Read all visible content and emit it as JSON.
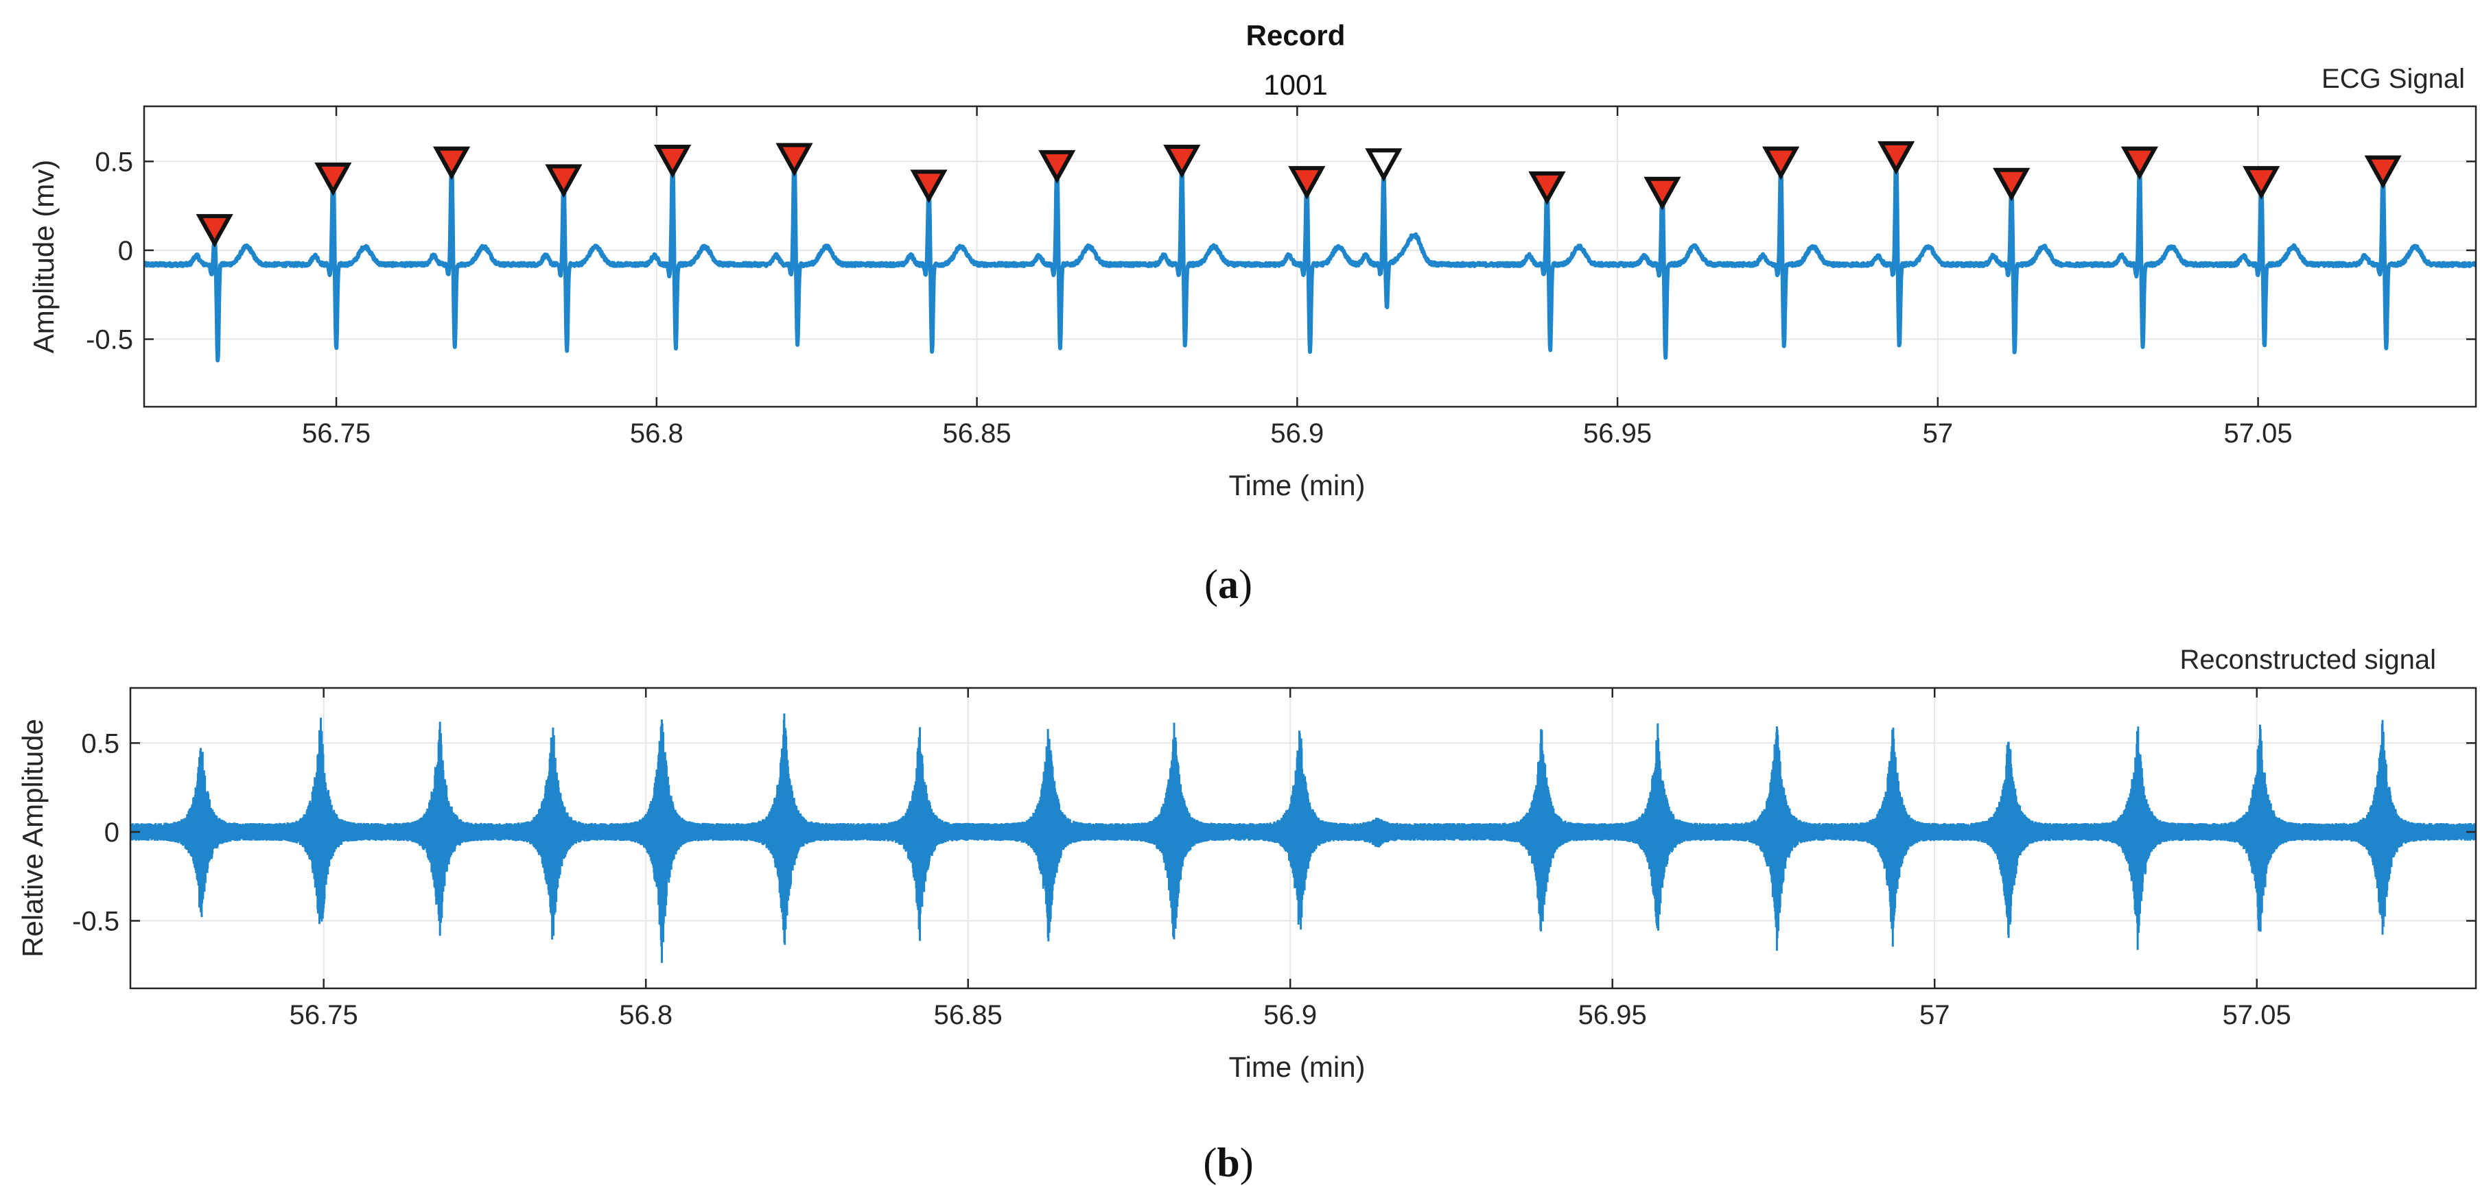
{
  "figure": {
    "title": "Record",
    "subtitle": "1001",
    "caption_a": "(a)",
    "caption_b": "(b)",
    "caption_a_letter": "a",
    "caption_b_letter": "b"
  },
  "colors": {
    "signal": "#1f86cc",
    "marker_fill": "#e8321e",
    "marker_stroke": "#111111",
    "grid": "#e6e6e6",
    "axis": "#262626"
  },
  "chart_data": [
    {
      "id": "ecg",
      "type": "line",
      "annotation": "ECG Signal",
      "xlabel": "Time (min)",
      "ylabel": "Amplitude (mv)",
      "xlim": [
        56.72,
        57.084
      ],
      "ylim": [
        -0.88,
        0.81
      ],
      "xticks": [
        56.75,
        56.8,
        56.85,
        56.9,
        56.95,
        57,
        57.05
      ],
      "xtick_labels": [
        "56.75",
        "56.8",
        "56.85",
        "56.9",
        "56.95",
        "57",
        "57.05"
      ],
      "yticks": [
        -0.5,
        0,
        0.5
      ],
      "ytick_labels": [
        "-0.5",
        "0",
        "0.5"
      ],
      "grid": true,
      "baseline": -0.08,
      "beats": [
        {
          "t": 56.731,
          "peak": 0.15,
          "trough": -0.55
        },
        {
          "t": 56.7495,
          "peak": 0.55,
          "trough": -0.48
        },
        {
          "t": 56.768,
          "peak": 0.58,
          "trough": -0.47
        },
        {
          "t": 56.7855,
          "peak": 0.5,
          "trough": -0.49
        },
        {
          "t": 56.8025,
          "peak": 0.6,
          "trough": -0.47
        },
        {
          "t": 56.8215,
          "peak": 0.62,
          "trough": -0.45
        },
        {
          "t": 56.8425,
          "peak": 0.45,
          "trough": -0.49
        },
        {
          "t": 56.8625,
          "peak": 0.57,
          "trough": -0.47
        },
        {
          "t": 56.882,
          "peak": 0.59,
          "trough": -0.46
        },
        {
          "t": 56.9015,
          "peak": 0.49,
          "trough": -0.49
        },
        {
          "t": 56.9135,
          "peak": 0.52,
          "trough": -0.25
        },
        {
          "t": 56.939,
          "peak": 0.47,
          "trough": -0.48
        },
        {
          "t": 56.957,
          "peak": 0.44,
          "trough": -0.52
        },
        {
          "t": 56.9755,
          "peak": 0.57,
          "trough": -0.47
        },
        {
          "t": 56.9935,
          "peak": 0.62,
          "trough": -0.46
        },
        {
          "t": 57.0115,
          "peak": 0.47,
          "trough": -0.5
        },
        {
          "t": 57.0315,
          "peak": 0.57,
          "trough": -0.47
        },
        {
          "t": 57.0505,
          "peak": 0.48,
          "trough": -0.47
        },
        {
          "t": 57.0695,
          "peak": 0.53,
          "trough": -0.48
        }
      ],
      "markers": [
        {
          "t": 56.731,
          "y": 0.12,
          "filled": true
        },
        {
          "t": 56.7495,
          "y": 0.41,
          "filled": true
        },
        {
          "t": 56.768,
          "y": 0.5,
          "filled": true
        },
        {
          "t": 56.7855,
          "y": 0.4,
          "filled": true
        },
        {
          "t": 56.8025,
          "y": 0.51,
          "filled": true
        },
        {
          "t": 56.8215,
          "y": 0.52,
          "filled": true
        },
        {
          "t": 56.8425,
          "y": 0.37,
          "filled": true
        },
        {
          "t": 56.8625,
          "y": 0.48,
          "filled": true
        },
        {
          "t": 56.882,
          "y": 0.51,
          "filled": true
        },
        {
          "t": 56.9015,
          "y": 0.39,
          "filled": true
        },
        {
          "t": 56.9135,
          "y": 0.49,
          "filled": false
        },
        {
          "t": 56.939,
          "y": 0.36,
          "filled": true
        },
        {
          "t": 56.957,
          "y": 0.33,
          "filled": true
        },
        {
          "t": 56.9755,
          "y": 0.5,
          "filled": true
        },
        {
          "t": 56.9935,
          "y": 0.53,
          "filled": true
        },
        {
          "t": 57.0115,
          "y": 0.38,
          "filled": true
        },
        {
          "t": 57.0315,
          "y": 0.5,
          "filled": true
        },
        {
          "t": 57.0505,
          "y": 0.39,
          "filled": true
        },
        {
          "t": 57.0695,
          "y": 0.45,
          "filled": true
        }
      ]
    },
    {
      "id": "reconstructed",
      "type": "line",
      "annotation": "Reconstructed signal",
      "xlabel": "Time (min)",
      "ylabel": "Relative Amplitude",
      "xlim": [
        56.72,
        57.084
      ],
      "ylim": [
        -0.88,
        0.81
      ],
      "xticks": [
        56.75,
        56.8,
        56.85,
        56.9,
        56.95,
        57,
        57.05
      ],
      "xtick_labels": [
        "56.75",
        "56.8",
        "56.85",
        "56.9",
        "56.95",
        "57",
        "57.05"
      ],
      "yticks": [
        -0.5,
        0,
        0.5
      ],
      "ytick_labels": [
        "-0.5",
        "0",
        "0.5"
      ],
      "grid": true,
      "baseline_envelope": 0.05,
      "bursts": [
        {
          "t": 56.731,
          "max": 0.55,
          "min": -0.56
        },
        {
          "t": 56.7495,
          "max": 0.69,
          "min": -0.68
        },
        {
          "t": 56.768,
          "max": 0.68,
          "min": -0.68
        },
        {
          "t": 56.7855,
          "max": 0.68,
          "min": -0.7
        },
        {
          "t": 56.8025,
          "max": 0.74,
          "min": -0.75
        },
        {
          "t": 56.8215,
          "max": 0.7,
          "min": -0.72
        },
        {
          "t": 56.8425,
          "max": 0.62,
          "min": -0.63
        },
        {
          "t": 56.8625,
          "max": 0.67,
          "min": -0.7
        },
        {
          "t": 56.882,
          "max": 0.68,
          "min": -0.7
        },
        {
          "t": 56.9015,
          "max": 0.65,
          "min": -0.66
        },
        {
          "t": 56.9135,
          "max": 0.09,
          "min": -0.1
        },
        {
          "t": 56.939,
          "max": 0.64,
          "min": -0.66
        },
        {
          "t": 56.957,
          "max": 0.64,
          "min": -0.66
        },
        {
          "t": 56.9755,
          "max": 0.67,
          "min": -0.7
        },
        {
          "t": 56.9935,
          "max": 0.65,
          "min": -0.66
        },
        {
          "t": 57.0115,
          "max": 0.63,
          "min": -0.66
        },
        {
          "t": 57.0315,
          "max": 0.66,
          "min": -0.68
        },
        {
          "t": 57.0505,
          "max": 0.65,
          "min": -0.67
        },
        {
          "t": 57.0695,
          "max": 0.66,
          "min": -0.68
        }
      ]
    }
  ]
}
